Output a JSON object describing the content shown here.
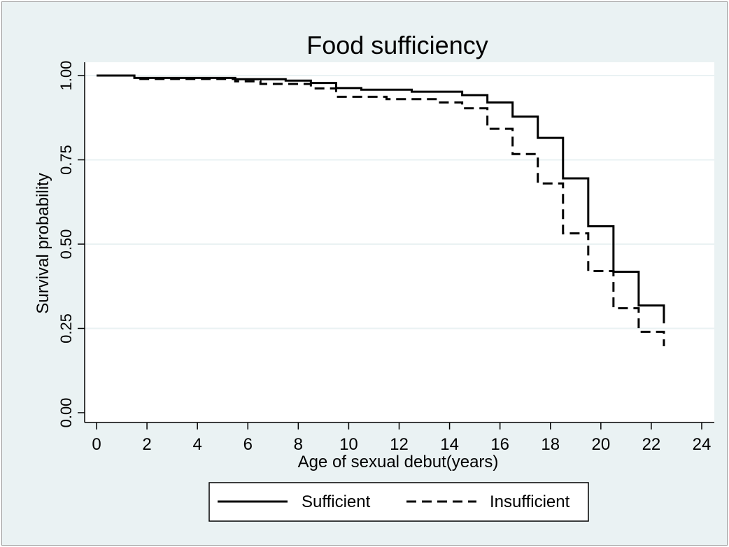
{
  "chart_data": {
    "type": "line",
    "subtype": "step",
    "title": "Food sufficiency",
    "xlabel": "Age of sexual debut(years)",
    "ylabel": "Survival probability",
    "xlim": [
      0,
      24
    ],
    "ylim": [
      0,
      1
    ],
    "x_ticks": [
      0,
      2,
      4,
      6,
      8,
      10,
      12,
      14,
      16,
      18,
      20,
      22,
      24
    ],
    "y_ticks": [
      0,
      0.25,
      0.5,
      0.75,
      1
    ],
    "x_tick_labels": [
      "0",
      "2",
      "4",
      "6",
      "8",
      "10",
      "12",
      "14",
      "16",
      "18",
      "20",
      "22",
      "24"
    ],
    "y_tick_labels": [
      "0.00",
      "0.25",
      "0.50",
      "0.75",
      "1.00"
    ],
    "grid": "horizontal",
    "legend_position": "bottom",
    "colors": {
      "background": "#eaf2f3",
      "plot_area": "#ffffff",
      "gridline": "#eaf2f3",
      "line": "#000000"
    },
    "series": [
      {
        "name": "Sufficient",
        "style": "solid",
        "x": [
          0,
          1.5,
          5.5,
          7.5,
          8.5,
          9.5,
          10.5,
          12.5,
          14.5,
          15.5,
          16.5,
          17.5,
          18.5,
          19.5,
          20.5,
          21.5,
          22.5
        ],
        "y": [
          1.0,
          0.993,
          0.989,
          0.985,
          0.978,
          0.963,
          0.958,
          0.952,
          0.942,
          0.92,
          0.878,
          0.815,
          0.695,
          0.553,
          0.418,
          0.318,
          0.265
        ]
      },
      {
        "name": "Insufficient",
        "style": "dashed",
        "x": [
          0,
          1.5,
          5.5,
          6.5,
          8.5,
          9.5,
          11.5,
          13.5,
          14.5,
          15.5,
          16.5,
          17.5,
          18.5,
          19.5,
          20.5,
          21.5,
          22.5
        ],
        "y": [
          1.0,
          0.99,
          0.983,
          0.975,
          0.962,
          0.937,
          0.93,
          0.92,
          0.903,
          0.842,
          0.767,
          0.68,
          0.532,
          0.42,
          0.31,
          0.24,
          0.197
        ]
      }
    ]
  }
}
